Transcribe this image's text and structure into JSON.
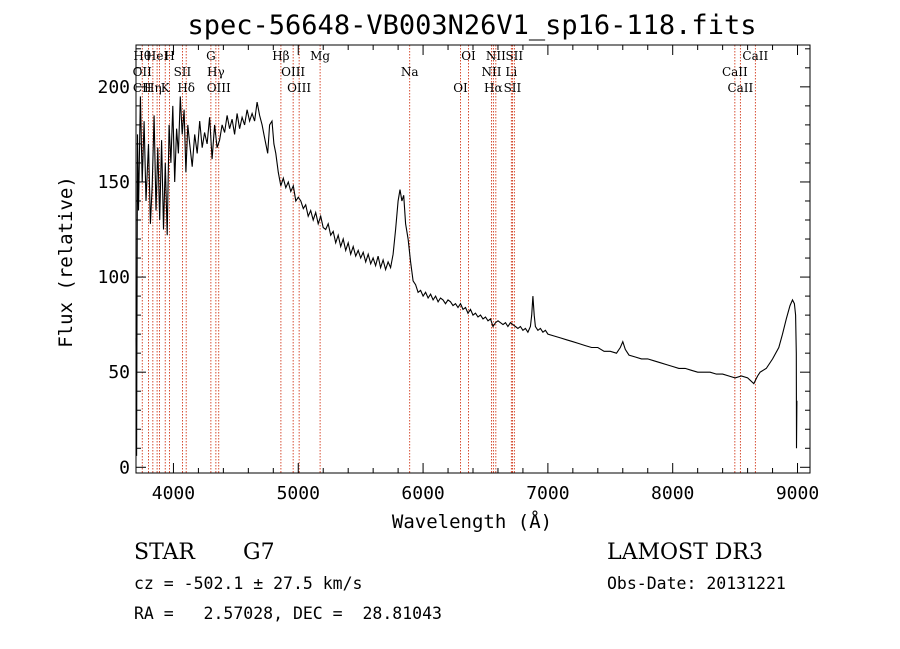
{
  "chart_data": {
    "type": "line",
    "title": "spec-56648-VB003N26V1_sp16-118.fits",
    "xlabel": "Wavelength (Å)",
    "ylabel": "Flux (relative)",
    "xlim": [
      3700,
      9100
    ],
    "ylim": [
      -3,
      222
    ],
    "xticks": [
      4000,
      5000,
      6000,
      7000,
      8000,
      9000
    ],
    "yticks": [
      0,
      50,
      100,
      150,
      200
    ],
    "grid": false,
    "series": [
      {
        "name": "spectrum",
        "points": [
          [
            3700,
            68
          ],
          [
            3705,
            6
          ],
          [
            3712,
            175
          ],
          [
            3720,
            135
          ],
          [
            3735,
            195
          ],
          [
            3750,
            150
          ],
          [
            3765,
            182
          ],
          [
            3780,
            140
          ],
          [
            3800,
            170
          ],
          [
            3815,
            128
          ],
          [
            3830,
            148
          ],
          [
            3845,
            185
          ],
          [
            3860,
            135
          ],
          [
            3875,
            168
          ],
          [
            3890,
            130
          ],
          [
            3905,
            172
          ],
          [
            3920,
            125
          ],
          [
            3935,
            160
          ],
          [
            3950,
            122
          ],
          [
            3965,
            180
          ],
          [
            3980,
            160
          ],
          [
            3995,
            190
          ],
          [
            4010,
            150
          ],
          [
            4025,
            178
          ],
          [
            4040,
            165
          ],
          [
            4055,
            195
          ],
          [
            4070,
            175
          ],
          [
            4085,
            188
          ],
          [
            4100,
            155
          ],
          [
            4115,
            180
          ],
          [
            4130,
            170
          ],
          [
            4150,
            158
          ],
          [
            4170,
            175
          ],
          [
            4190,
            165
          ],
          [
            4210,
            182
          ],
          [
            4230,
            168
          ],
          [
            4250,
            176
          ],
          [
            4270,
            170
          ],
          [
            4290,
            184
          ],
          [
            4310,
            162
          ],
          [
            4330,
            180
          ],
          [
            4350,
            168
          ],
          [
            4370,
            172
          ],
          [
            4390,
            180
          ],
          [
            4410,
            176
          ],
          [
            4430,
            185
          ],
          [
            4450,
            178
          ],
          [
            4470,
            183
          ],
          [
            4490,
            175
          ],
          [
            4510,
            186
          ],
          [
            4530,
            178
          ],
          [
            4550,
            184
          ],
          [
            4570,
            180
          ],
          [
            4590,
            188
          ],
          [
            4610,
            182
          ],
          [
            4630,
            186
          ],
          [
            4650,
            182
          ],
          [
            4670,
            192
          ],
          [
            4690,
            185
          ],
          [
            4710,
            180
          ],
          [
            4725,
            175
          ],
          [
            4740,
            170
          ],
          [
            4755,
            165
          ],
          [
            4770,
            180
          ],
          [
            4790,
            182
          ],
          [
            4805,
            170
          ],
          [
            4820,
            165
          ],
          [
            4840,
            155
          ],
          [
            4860,
            148
          ],
          [
            4880,
            152
          ],
          [
            4900,
            147
          ],
          [
            4920,
            150
          ],
          [
            4940,
            145
          ],
          [
            4960,
            148
          ],
          [
            4980,
            140
          ],
          [
            5000,
            142
          ],
          [
            5020,
            140
          ],
          [
            5040,
            136
          ],
          [
            5060,
            138
          ],
          [
            5080,
            132
          ],
          [
            5100,
            135
          ],
          [
            5120,
            130
          ],
          [
            5140,
            134
          ],
          [
            5160,
            128
          ],
          [
            5180,
            132
          ],
          [
            5200,
            126
          ],
          [
            5220,
            125
          ],
          [
            5240,
            128
          ],
          [
            5260,
            122
          ],
          [
            5280,
            124
          ],
          [
            5300,
            118
          ],
          [
            5320,
            122
          ],
          [
            5340,
            116
          ],
          [
            5360,
            120
          ],
          [
            5380,
            114
          ],
          [
            5400,
            118
          ],
          [
            5420,
            112
          ],
          [
            5440,
            116
          ],
          [
            5460,
            111
          ],
          [
            5480,
            114
          ],
          [
            5500,
            110
          ],
          [
            5520,
            113
          ],
          [
            5540,
            108
          ],
          [
            5560,
            112
          ],
          [
            5580,
            107
          ],
          [
            5600,
            110
          ],
          [
            5620,
            106
          ],
          [
            5640,
            111
          ],
          [
            5660,
            105
          ],
          [
            5680,
            109
          ],
          [
            5700,
            104
          ],
          [
            5720,
            108
          ],
          [
            5740,
            105
          ],
          [
            5760,
            112
          ],
          [
            5780,
            125
          ],
          [
            5800,
            140
          ],
          [
            5815,
            146
          ],
          [
            5830,
            140
          ],
          [
            5845,
            143
          ],
          [
            5860,
            128
          ],
          [
            5880,
            120
          ],
          [
            5900,
            108
          ],
          [
            5920,
            98
          ],
          [
            5940,
            96
          ],
          [
            5960,
            92
          ],
          [
            5980,
            93
          ],
          [
            6000,
            90
          ],
          [
            6020,
            92
          ],
          [
            6040,
            89
          ],
          [
            6060,
            91
          ],
          [
            6080,
            88
          ],
          [
            6100,
            90
          ],
          [
            6120,
            87
          ],
          [
            6140,
            89
          ],
          [
            6160,
            88
          ],
          [
            6180,
            86
          ],
          [
            6200,
            88
          ],
          [
            6220,
            87
          ],
          [
            6240,
            85
          ],
          [
            6260,
            86
          ],
          [
            6280,
            84
          ],
          [
            6300,
            86
          ],
          [
            6320,
            83
          ],
          [
            6340,
            84
          ],
          [
            6360,
            81
          ],
          [
            6380,
            83
          ],
          [
            6400,
            80
          ],
          [
            6420,
            81
          ],
          [
            6440,
            79
          ],
          [
            6460,
            80
          ],
          [
            6480,
            78
          ],
          [
            6500,
            79
          ],
          [
            6520,
            77
          ],
          [
            6540,
            78
          ],
          [
            6560,
            74
          ],
          [
            6580,
            76
          ],
          [
            6600,
            77
          ],
          [
            6620,
            76
          ],
          [
            6640,
            75
          ],
          [
            6660,
            76
          ],
          [
            6680,
            74
          ],
          [
            6700,
            76
          ],
          [
            6720,
            75
          ],
          [
            6740,
            74
          ],
          [
            6760,
            73
          ],
          [
            6780,
            74
          ],
          [
            6800,
            72
          ],
          [
            6820,
            73
          ],
          [
            6840,
            71
          ],
          [
            6860,
            74
          ],
          [
            6870,
            80
          ],
          [
            6880,
            90
          ],
          [
            6890,
            80
          ],
          [
            6900,
            74
          ],
          [
            6920,
            72
          ],
          [
            6940,
            73
          ],
          [
            6960,
            71
          ],
          [
            6980,
            72
          ],
          [
            7000,
            70
          ],
          [
            7050,
            69
          ],
          [
            7100,
            68
          ],
          [
            7150,
            67
          ],
          [
            7200,
            66
          ],
          [
            7250,
            65
          ],
          [
            7300,
            64
          ],
          [
            7350,
            63
          ],
          [
            7400,
            63
          ],
          [
            7450,
            61
          ],
          [
            7500,
            61
          ],
          [
            7550,
            60
          ],
          [
            7580,
            63
          ],
          [
            7600,
            66
          ],
          [
            7620,
            62
          ],
          [
            7650,
            59
          ],
          [
            7700,
            58
          ],
          [
            7750,
            57
          ],
          [
            7800,
            57
          ],
          [
            7850,
            56
          ],
          [
            7900,
            55
          ],
          [
            7950,
            54
          ],
          [
            8000,
            53
          ],
          [
            8050,
            52
          ],
          [
            8100,
            52
          ],
          [
            8150,
            51
          ],
          [
            8200,
            50
          ],
          [
            8250,
            50
          ],
          [
            8300,
            50
          ],
          [
            8350,
            49
          ],
          [
            8400,
            49
          ],
          [
            8450,
            48
          ],
          [
            8500,
            47
          ],
          [
            8550,
            48
          ],
          [
            8600,
            47
          ],
          [
            8650,
            44
          ],
          [
            8680,
            48
          ],
          [
            8700,
            50
          ],
          [
            8750,
            52
          ],
          [
            8800,
            57
          ],
          [
            8850,
            63
          ],
          [
            8880,
            70
          ],
          [
            8910,
            78
          ],
          [
            8940,
            85
          ],
          [
            8960,
            88
          ],
          [
            8975,
            86
          ],
          [
            8985,
            80
          ],
          [
            8990,
            60
          ],
          [
            8992,
            10
          ],
          [
            8995,
            35
          ]
        ]
      }
    ],
    "lines": [
      {
        "wl": 3750,
        "labels": [
          "Hθ",
          "OII",
          "CII"
        ]
      },
      {
        "wl": 3800,
        "labels": []
      },
      {
        "wl": 3835,
        "labels": [
          "Hη"
        ]
      },
      {
        "wl": 3869,
        "labels": [
          "HeI"
        ]
      },
      {
        "wl": 3889,
        "labels": []
      },
      {
        "wl": 3934,
        "labels": [
          "K"
        ]
      },
      {
        "wl": 3969,
        "labels": [
          "H"
        ]
      },
      {
        "wl": 4072,
        "labels": [
          "SII"
        ]
      },
      {
        "wl": 4102,
        "labels": [
          "Hδ"
        ]
      },
      {
        "wl": 4300,
        "labels": [
          "G"
        ]
      },
      {
        "wl": 4340,
        "labels": [
          "Hγ"
        ]
      },
      {
        "wl": 4363,
        "labels": [
          "OIII"
        ]
      },
      {
        "wl": 4861,
        "labels": [
          "Hβ"
        ]
      },
      {
        "wl": 4959,
        "labels": [
          "OIII"
        ]
      },
      {
        "wl": 5007,
        "labels": [
          "OIII"
        ]
      },
      {
        "wl": 5175,
        "labels": [
          "Mg"
        ]
      },
      {
        "wl": 5893,
        "labels": [
          "Na"
        ]
      },
      {
        "wl": 6300,
        "labels": [
          "OI"
        ]
      },
      {
        "wl": 6364,
        "labels": [
          "OI"
        ]
      },
      {
        "wl": 6548,
        "labels": [
          "NII"
        ]
      },
      {
        "wl": 6563,
        "labels": [
          "Hα"
        ]
      },
      {
        "wl": 6583,
        "labels": [
          "NII"
        ]
      },
      {
        "wl": 6707,
        "labels": [
          "Li"
        ]
      },
      {
        "wl": 6716,
        "labels": [
          "SII"
        ]
      },
      {
        "wl": 6731,
        "labels": [
          "SII"
        ]
      },
      {
        "wl": 8498,
        "labels": [
          "CaII"
        ]
      },
      {
        "wl": 8542,
        "labels": [
          "CaII"
        ]
      },
      {
        "wl": 8662,
        "labels": [
          "CaII"
        ]
      }
    ]
  },
  "info": {
    "class_label": "STAR",
    "subclass": "G7",
    "survey": "LAMOST DR3",
    "cz": "cz = -502.1 ± 27.5 km/s",
    "obs_date": "Obs-Date: 20131221",
    "coords": "RA =   2.57028, DEC =  28.81043"
  },
  "colors": {
    "line_marker": "#cc2200",
    "spectrum": "#000000"
  }
}
